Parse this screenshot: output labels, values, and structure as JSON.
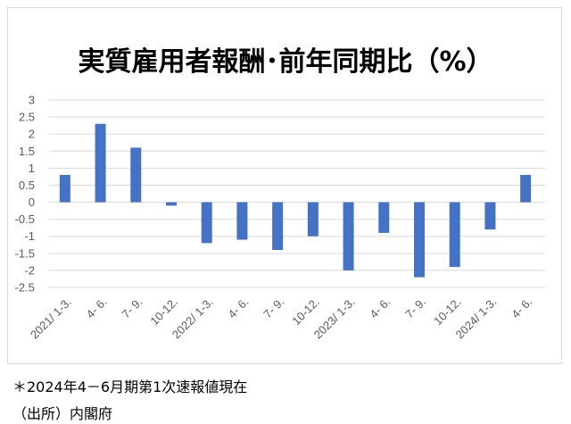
{
  "chart_data": {
    "type": "bar",
    "title": "実質雇用者報酬･前年同期比（%）",
    "categories": [
      "2021/ 1-3.",
      "4- 6.",
      "7- 9.",
      "10-12.",
      "2022/ 1-3.",
      "4- 6.",
      "7- 9.",
      "10-12.",
      "2023/ 1-3.",
      "4- 6.",
      "7- 9.",
      "10-12.",
      "2024/ 1-3.",
      "4- 6."
    ],
    "values": [
      0.8,
      2.3,
      1.6,
      -0.1,
      -1.2,
      -1.1,
      -1.4,
      -1.0,
      -2.0,
      -0.9,
      -2.2,
      -1.9,
      -0.8,
      0.8
    ],
    "ylim": [
      -2.5,
      3
    ],
    "yticks": [
      "3",
      "2.5",
      "2",
      "1.5",
      "1",
      "0.5",
      "0",
      "-0.5",
      "-1",
      "-1.5",
      "-2",
      "-2.5"
    ],
    "grid": true,
    "color": "#4472c4"
  },
  "notes": {
    "line1": "＊2024年4－6月期第1次速報値現在",
    "line2": "（出所）内閣府"
  }
}
